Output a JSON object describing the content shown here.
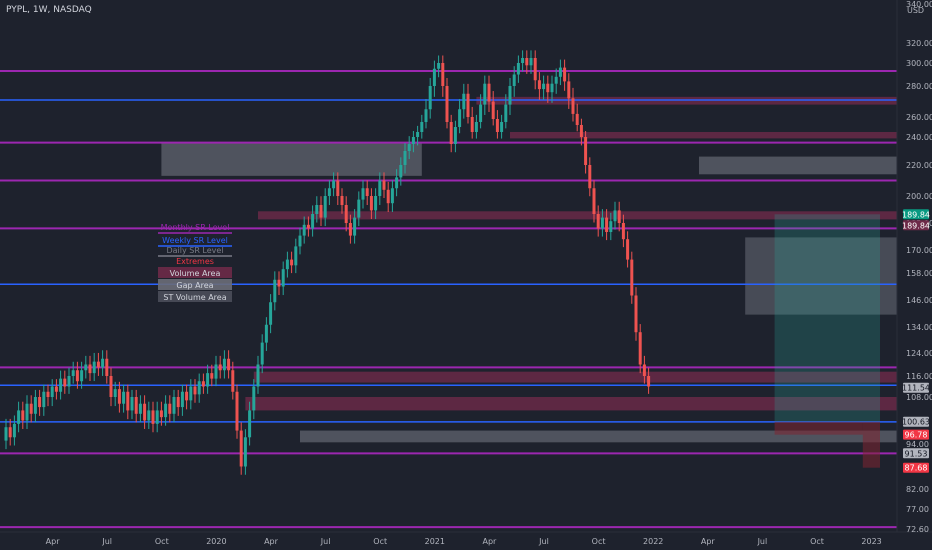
{
  "chart_data": {
    "type": "candlestick",
    "symbol": "PYPL, 1W, NASDAQ",
    "currency": "USD",
    "colors": {
      "background": "#1e222d",
      "up": "#26a69a",
      "down": "#ef5350",
      "monthly_sr": "#9c27b0",
      "weekly_sr": "#2962ff",
      "daily_sr": "#787b86",
      "extremes": "#f23645",
      "volume_area": "#6d2a48",
      "gap_area": "#787b86",
      "st_volume_area": "#4a4e5a",
      "position_profit": "#26a69a",
      "position_loss": "#7f2432"
    },
    "y_axis": {
      "ticks": [
        "340.00",
        "320.00",
        "300.00",
        "280.00",
        "260.00",
        "240.00",
        "220.00",
        "200.00",
        "185.00",
        "170.00",
        "158.00",
        "146.00",
        "134.00",
        "124.00",
        "116.00",
        "108.00",
        "94.00",
        "82.00",
        "77.00",
        "72.60"
      ],
      "tick_values": [
        340,
        320,
        300,
        280,
        260,
        240,
        220,
        200,
        185,
        170,
        158,
        146,
        134,
        124,
        116,
        108,
        94,
        82,
        77,
        72.6
      ]
    },
    "x_axis": {
      "labels": [
        "Apr",
        "Jul",
        "Oct",
        "2020",
        "Apr",
        "Jul",
        "Oct",
        "2021",
        "Apr",
        "Jul",
        "Oct",
        "2022",
        "Apr",
        "Jul",
        "Oct",
        "2023"
      ],
      "label_weeks": [
        8,
        21,
        34,
        47,
        60,
        73,
        86,
        99,
        112,
        125,
        138,
        151,
        164,
        177,
        190,
        203
      ]
    },
    "price_tags": [
      {
        "value": 189.84,
        "label": "189.84",
        "bg": "#089981",
        "fg": "#ffffff"
      },
      {
        "value": 189.84,
        "label": "189.84",
        "bg": "#6d2a48",
        "fg": "#ffffff",
        "offset": 1
      },
      {
        "value": 111.54,
        "label": "111.54",
        "bg": "#b2b5be",
        "fg": "#131722"
      },
      {
        "value": 100.63,
        "label": "100.63",
        "bg": "#b2b5be",
        "fg": "#131722"
      },
      {
        "value": 96.78,
        "label": "96.78",
        "bg": "#f23645",
        "fg": "#ffffff"
      },
      {
        "value": 91.53,
        "label": "91.53",
        "bg": "#b2b5be",
        "fg": "#131722"
      },
      {
        "value": 87.68,
        "label": "87.68",
        "bg": "#f23645",
        "fg": "#ffffff"
      }
    ],
    "legend": [
      {
        "label": "Monthly SR Level",
        "color": "#9c27b0",
        "kind": "line"
      },
      {
        "label": "Weekly SR Level",
        "color": "#2962ff",
        "kind": "line"
      },
      {
        "label": "Daily SR Level",
        "color": "#787b86",
        "kind": "line"
      },
      {
        "label": "Extremes",
        "color": "#f23645",
        "kind": "text"
      },
      {
        "label": "Volume Area",
        "color": "#6d2a48",
        "kind": "box"
      },
      {
        "label": "Gap Area",
        "color": "#6a6d78",
        "kind": "box"
      },
      {
        "label": "ST Volume Area",
        "color": "#4a4e5a",
        "kind": "box"
      }
    ],
    "monthly_levels": [
      293,
      236,
      210,
      182,
      119,
      91.5,
      73
    ],
    "weekly_levels": [
      271,
      153,
      112.5,
      100.6
    ],
    "volume_areas": [
      {
        "from_week": 112,
        "y1": 268,
        "y2": 273
      },
      {
        "from_week": 120,
        "y1": 239,
        "y2": 245
      },
      {
        "from_week": 60,
        "y1": 187,
        "y2": 191.5
      },
      {
        "from_week": 59,
        "y1": 113.5,
        "y2": 117.5
      },
      {
        "from_week": 57,
        "y1": 104,
        "y2": 108
      }
    ],
    "gap_areas": [
      {
        "from_week": 37,
        "to_week": 99,
        "y1": 213,
        "y2": 236
      },
      {
        "from_week": 165,
        "to_week": 219,
        "y1": 214,
        "y2": 226
      },
      {
        "from_week": 70,
        "to_week": 219,
        "y1": 94.5,
        "y2": 98
      }
    ],
    "st_volume_areas": [
      {
        "from_week": 176,
        "to_week": 219,
        "y1": 139.5,
        "y2": 177
      }
    ],
    "position": {
      "from_week": 183,
      "to_week": 227,
      "entry": 100.63,
      "target": 189.84,
      "loss_zones": [
        {
          "from_week": 183,
          "to_week": 204,
          "y1": 96.78,
          "y2": 100.63
        },
        {
          "from_week": 204,
          "to_week": 227,
          "y1": 87.68,
          "y2": 100.63
        }
      ]
    },
    "series": [
      [
        95,
        99
      ],
      [
        99,
        96
      ],
      [
        96,
        100
      ],
      [
        100,
        104
      ],
      [
        104,
        101
      ],
      [
        101,
        106
      ],
      [
        106,
        103
      ],
      [
        103,
        108
      ],
      [
        108,
        105
      ],
      [
        105,
        110
      ],
      [
        110,
        108
      ],
      [
        108,
        112
      ],
      [
        112,
        110
      ],
      [
        110,
        115
      ],
      [
        115,
        112
      ],
      [
        112,
        116
      ],
      [
        116,
        118
      ],
      [
        118,
        114
      ],
      [
        114,
        118
      ],
      [
        118,
        120
      ],
      [
        120,
        117
      ],
      [
        117,
        121
      ],
      [
        121,
        119
      ],
      [
        119,
        122
      ],
      [
        122,
        116
      ],
      [
        116,
        108
      ],
      [
        108,
        111
      ],
      [
        111,
        106
      ],
      [
        106,
        110
      ],
      [
        110,
        104
      ],
      [
        104,
        108
      ],
      [
        108,
        103
      ],
      [
        103,
        106
      ],
      [
        106,
        101
      ],
      [
        101,
        104
      ],
      [
        104,
        100
      ],
      [
        100,
        104
      ],
      [
        104,
        102
      ],
      [
        102,
        106
      ],
      [
        106,
        103
      ],
      [
        103,
        108
      ],
      [
        108,
        105
      ],
      [
        105,
        110
      ],
      [
        110,
        107
      ],
      [
        107,
        112
      ],
      [
        112,
        109
      ],
      [
        109,
        114
      ],
      [
        114,
        112
      ],
      [
        112,
        117
      ],
      [
        117,
        115
      ],
      [
        115,
        120
      ],
      [
        120,
        118
      ],
      [
        118,
        122
      ],
      [
        122,
        118
      ],
      [
        118,
        110
      ],
      [
        110,
        98
      ],
      [
        98,
        88
      ],
      [
        88,
        96
      ],
      [
        96,
        104
      ],
      [
        104,
        112
      ],
      [
        112,
        120
      ],
      [
        120,
        128
      ],
      [
        128,
        135
      ],
      [
        135,
        145
      ],
      [
        145,
        155
      ],
      [
        155,
        152
      ],
      [
        152,
        160
      ],
      [
        160,
        165
      ],
      [
        165,
        162
      ],
      [
        162,
        172
      ],
      [
        172,
        178
      ],
      [
        178,
        184
      ],
      [
        184,
        182
      ],
      [
        182,
        190
      ],
      [
        190,
        195
      ],
      [
        195,
        188
      ],
      [
        188,
        200
      ],
      [
        200,
        205
      ],
      [
        205,
        210
      ],
      [
        210,
        200
      ],
      [
        200,
        195
      ],
      [
        195,
        185
      ],
      [
        185,
        178
      ],
      [
        178,
        188
      ],
      [
        188,
        198
      ],
      [
        198,
        205
      ],
      [
        205,
        200
      ],
      [
        200,
        192
      ],
      [
        192,
        200
      ],
      [
        200,
        210
      ],
      [
        210,
        204
      ],
      [
        204,
        196
      ],
      [
        196,
        205
      ],
      [
        205,
        212
      ],
      [
        212,
        220
      ],
      [
        220,
        230
      ],
      [
        230,
        235
      ],
      [
        235,
        240
      ],
      [
        240,
        245
      ],
      [
        245,
        255
      ],
      [
        255,
        265
      ],
      [
        265,
        280
      ],
      [
        280,
        295
      ],
      [
        295,
        300
      ],
      [
        300,
        280
      ],
      [
        280,
        255
      ],
      [
        255,
        235
      ],
      [
        235,
        250
      ],
      [
        250,
        265
      ],
      [
        265,
        275
      ],
      [
        275,
        260
      ],
      [
        260,
        245
      ],
      [
        245,
        255
      ],
      [
        255,
        268
      ],
      [
        268,
        282
      ],
      [
        282,
        270
      ],
      [
        270,
        258
      ],
      [
        258,
        245
      ],
      [
        245,
        255
      ],
      [
        255,
        268
      ],
      [
        268,
        280
      ],
      [
        280,
        290
      ],
      [
        290,
        300
      ],
      [
        300,
        305
      ],
      [
        305,
        298
      ],
      [
        298,
        305
      ],
      [
        305,
        285
      ],
      [
        285,
        278
      ],
      [
        278,
        282
      ],
      [
        282,
        276
      ],
      [
        276,
        282
      ],
      [
        282,
        288
      ],
      [
        288,
        296
      ],
      [
        296,
        284
      ],
      [
        284,
        272
      ],
      [
        272,
        262
      ],
      [
        262,
        252
      ],
      [
        252,
        240
      ],
      [
        240,
        220
      ],
      [
        220,
        205
      ],
      [
        205,
        190
      ],
      [
        190,
        182
      ],
      [
        182,
        188
      ],
      [
        188,
        180
      ],
      [
        180,
        186
      ],
      [
        186,
        192
      ],
      [
        192,
        185
      ],
      [
        185,
        176
      ],
      [
        176,
        165
      ],
      [
        165,
        148
      ],
      [
        148,
        132
      ],
      [
        132,
        120
      ],
      [
        120,
        116
      ],
      [
        116,
        112
      ]
    ]
  }
}
